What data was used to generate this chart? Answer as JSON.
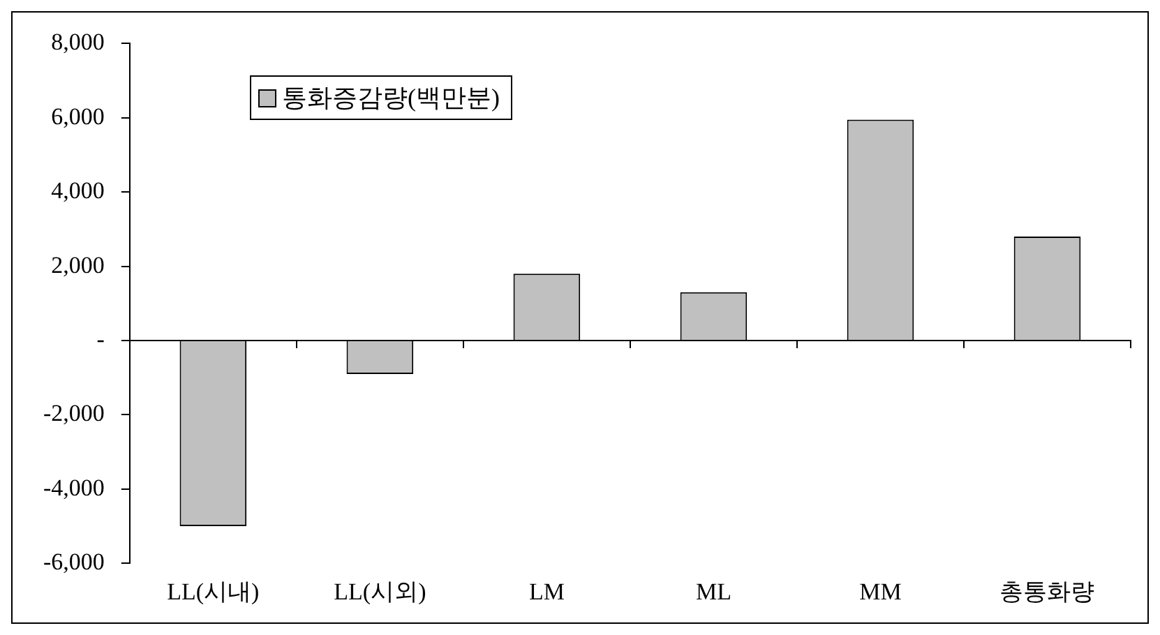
{
  "chart_data": {
    "type": "bar",
    "categories": [
      "LL(시내)",
      "LL(시외)",
      "LM",
      "ML",
      "MM",
      "총통화량"
    ],
    "series": [
      {
        "name": "통화증감량(백만분)",
        "color": "#c0c0c0",
        "values": [
          -5000,
          -900,
          1800,
          1300,
          5950,
          2800
        ]
      }
    ],
    "ylim": [
      -6000,
      8000
    ],
    "yticks": [
      {
        "value": -6000,
        "label": "-6,000"
      },
      {
        "value": -4000,
        "label": "-4,000"
      },
      {
        "value": -2000,
        "label": "-2,000"
      },
      {
        "value": 0,
        "label": "-"
      },
      {
        "value": 2000,
        "label": "2,000"
      },
      {
        "value": 4000,
        "label": "4,000"
      },
      {
        "value": 6000,
        "label": "6,000"
      },
      {
        "value": 8000,
        "label": "8,000"
      }
    ],
    "legend": "top left"
  }
}
